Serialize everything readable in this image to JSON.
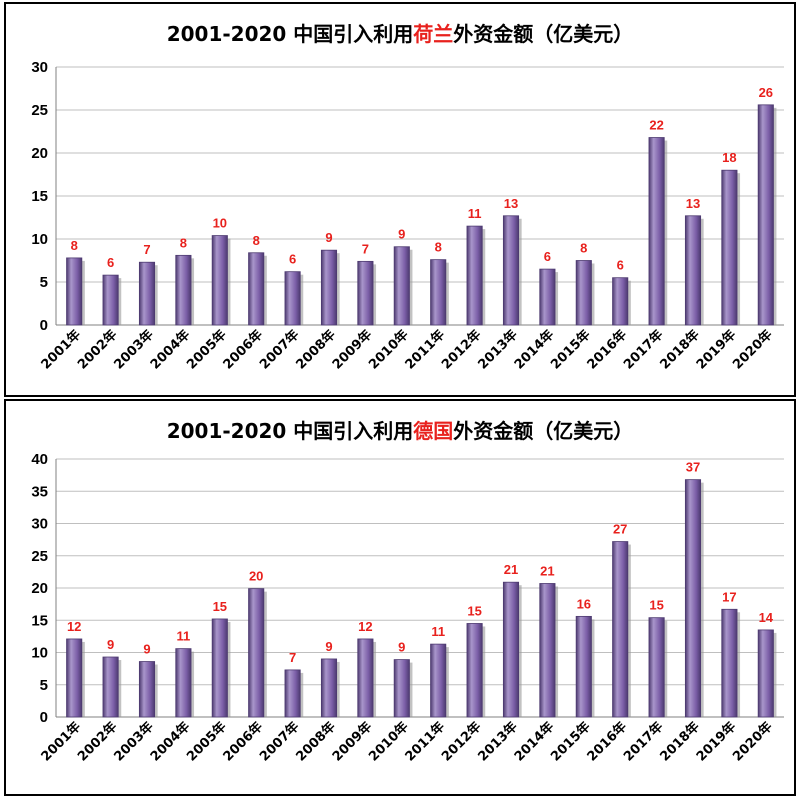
{
  "colors": {
    "bar": "#7b5ea7",
    "bar_light": "#a996cb",
    "bar_dark": "#4d3a70",
    "label": "#e8211d",
    "grid": "#bfbfbf"
  },
  "charts": [
    {
      "title_a": "2001-2020 中国引入利用",
      "title_hl": "荷兰",
      "title_b": "外资金额（亿美元）"
    },
    {
      "title_a": "2001-2020 中国引入利用",
      "title_hl": "德国",
      "title_b": "外资金额（亿美元）"
    }
  ],
  "chart_data": [
    {
      "type": "bar",
      "title": "2001-2020 中国引入利用荷兰外资金额（亿美元）",
      "categories": [
        "2001年",
        "2002年",
        "2003年",
        "2004年",
        "2005年",
        "2006年",
        "2007年",
        "2008年",
        "2009年",
        "2010年",
        "2011年",
        "2012年",
        "2013年",
        "2014年",
        "2015年",
        "2016年",
        "2017年",
        "2018年",
        "2019年",
        "2020年"
      ],
      "values": [
        7.8,
        5.8,
        7.3,
        8.1,
        10.4,
        8.4,
        6.2,
        8.7,
        7.4,
        9.1,
        7.6,
        11.5,
        12.7,
        6.5,
        7.5,
        5.5,
        21.8,
        12.7,
        18.0,
        25.6
      ],
      "data_labels": [
        "8",
        "6",
        "7",
        "8",
        "10",
        "8",
        "6",
        "9",
        "7",
        "9",
        "8",
        "11",
        "13",
        "6",
        "8",
        "6",
        "22",
        "13",
        "18",
        "26"
      ],
      "yticks": [
        "0",
        "5",
        "10",
        "15",
        "20",
        "25",
        "30"
      ],
      "ylim": [
        0,
        30
      ],
      "grid": true
    },
    {
      "type": "bar",
      "title": "2001-2020 中国引入利用德国外资金额（亿美元）",
      "categories": [
        "2001年",
        "2002年",
        "2003年",
        "2004年",
        "2005年",
        "2006年",
        "2007年",
        "2008年",
        "2009年",
        "2010年",
        "2011年",
        "2012年",
        "2013年",
        "2014年",
        "2015年",
        "2016年",
        "2017年",
        "2018年",
        "2019年",
        "2020年"
      ],
      "values": [
        12.1,
        9.3,
        8.6,
        10.6,
        15.2,
        19.9,
        7.3,
        9.0,
        12.1,
        8.9,
        11.3,
        14.5,
        20.9,
        20.7,
        15.6,
        27.2,
        15.4,
        36.8,
        16.7,
        13.5
      ],
      "data_labels": [
        "12",
        "9",
        "9",
        "11",
        "15",
        "20",
        "7",
        "9",
        "12",
        "9",
        "11",
        "15",
        "21",
        "21",
        "16",
        "27",
        "15",
        "37",
        "17",
        "14"
      ],
      "yticks": [
        "0",
        "5",
        "10",
        "15",
        "20",
        "25",
        "30",
        "35",
        "40"
      ],
      "ylim": [
        0,
        40
      ],
      "grid": true
    }
  ]
}
